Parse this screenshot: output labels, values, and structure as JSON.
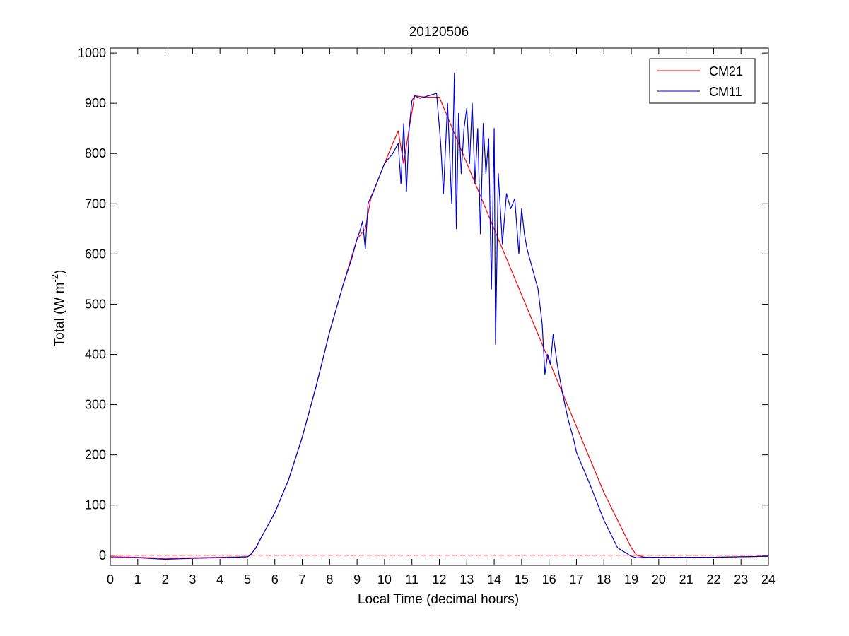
{
  "chart_data": {
    "type": "line",
    "title": "20120506",
    "xlabel": "Local Time (decimal hours)",
    "ylabel": "Total (W m",
    "ylabel_sup": "-2",
    "ylabel_close": ")",
    "xlim": [
      0,
      24
    ],
    "ylim": [
      -20,
      1010
    ],
    "xticks": [
      0,
      1,
      2,
      3,
      4,
      5,
      6,
      7,
      8,
      9,
      10,
      11,
      12,
      13,
      14,
      15,
      16,
      17,
      18,
      19,
      20,
      21,
      22,
      23,
      24
    ],
    "yticks": [
      0,
      100,
      200,
      300,
      400,
      500,
      600,
      700,
      800,
      900,
      1000
    ],
    "grid": false,
    "legend_position": "top-right",
    "reference_line": {
      "y": 0,
      "style": "dashed",
      "color": "#cc0000"
    },
    "series": [
      {
        "name": "CM21",
        "color": "#ff0000",
        "x": [
          0,
          1,
          2,
          3,
          4,
          5,
          5.1,
          5.3,
          5.5,
          6,
          6.5,
          7,
          7.5,
          8,
          8.5,
          9,
          9.3,
          9.5,
          10,
          10.3,
          10.5,
          10.7,
          10.9,
          11.1,
          11.5,
          12,
          18,
          18.5,
          19,
          19.2,
          19.5,
          20,
          21,
          22,
          23,
          24
        ],
        "y": [
          -3,
          -4,
          -6,
          -5,
          -4,
          -3,
          0,
          14,
          35,
          85,
          150,
          235,
          335,
          445,
          540,
          630,
          650,
          710,
          780,
          820,
          845,
          780,
          850,
          915,
          912,
          912,
          125,
          70,
          15,
          0,
          -4,
          -4,
          -4,
          -4,
          -3,
          -2
        ]
      },
      {
        "name": "CM11",
        "color": "#0000cc",
        "x": [
          0,
          1,
          2,
          2.5,
          3,
          4,
          4.5,
          5,
          5.1,
          5.3,
          5.5,
          6,
          6.5,
          7,
          7.5,
          8,
          8.5,
          8.8,
          9,
          9.1,
          9.2,
          9.3,
          9.4,
          9.6,
          10,
          10.3,
          10.5,
          10.6,
          10.7,
          10.8,
          10.9,
          11,
          11.1,
          11.3,
          11.6,
          11.9,
          12.05,
          12.15,
          12.3,
          12.45,
          12.55,
          12.62,
          12.7,
          12.8,
          12.9,
          13,
          13.1,
          13.2,
          13.3,
          13.4,
          13.5,
          13.6,
          13.7,
          13.8,
          13.9,
          14,
          14.05,
          14.15,
          14.3,
          14.45,
          14.6,
          14.75,
          14.9,
          15,
          15.1,
          15.2,
          15.3,
          15.45,
          15.6,
          15.75,
          15.85,
          15.95,
          16.05,
          16.15,
          16.3,
          16.5,
          16.7,
          16.9,
          17,
          17.5,
          18,
          18.5,
          19,
          19.2,
          19.5,
          20,
          21,
          22,
          23,
          24
        ],
        "y": [
          -5,
          -5,
          -8,
          -7,
          -6,
          -5,
          -4,
          -3,
          0,
          14,
          35,
          85,
          150,
          235,
          335,
          445,
          540,
          590,
          630,
          645,
          665,
          610,
          700,
          725,
          780,
          800,
          820,
          740,
          860,
          725,
          850,
          905,
          915,
          910,
          915,
          920,
          820,
          720,
          900,
          700,
          960,
          650,
          880,
          760,
          850,
          890,
          780,
          900,
          740,
          850,
          640,
          860,
          760,
          830,
          530,
          850,
          420,
          760,
          620,
          720,
          690,
          710,
          600,
          690,
          640,
          610,
          590,
          560,
          530,
          460,
          360,
          400,
          380,
          440,
          380,
          320,
          270,
          230,
          205,
          140,
          70,
          15,
          -2,
          -5,
          -4,
          -4,
          -4,
          -4,
          -3,
          -2
        ]
      }
    ]
  }
}
